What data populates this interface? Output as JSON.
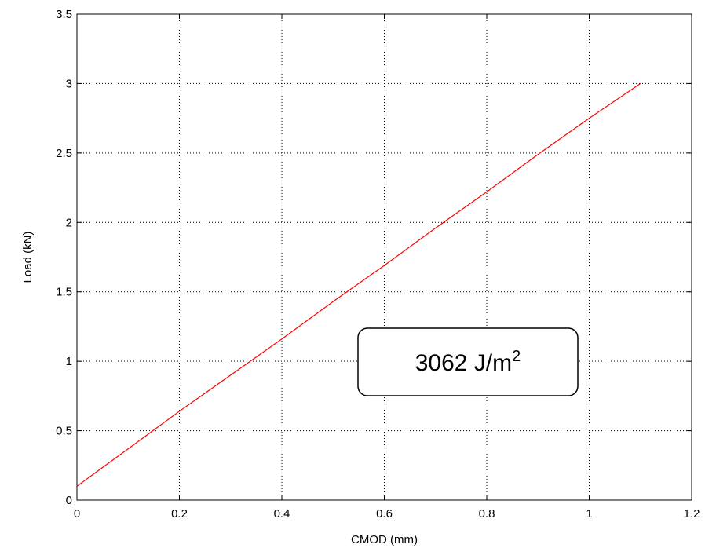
{
  "chart_data": {
    "type": "line",
    "title": "",
    "xlabel": "CMOD (mm)",
    "ylabel": "Load (kN)",
    "xlim": [
      0,
      1.2
    ],
    "ylim": [
      0,
      3.5
    ],
    "xticks": [
      "0",
      "0.2",
      "0.4",
      "0.6",
      "0.8",
      "1",
      "1.2"
    ],
    "yticks": [
      "0",
      "0.5",
      "1",
      "1.5",
      "2",
      "2.5",
      "3",
      "3.5"
    ],
    "grid": true,
    "grid_style": "dotted",
    "legend": "none",
    "series": [
      {
        "color": "#ff0000",
        "x": [
          0,
          0.1,
          0.2,
          0.3,
          0.4,
          0.5,
          0.6,
          0.7,
          0.8,
          0.9,
          1.0,
          1.1
        ],
        "y": [
          0.1,
          0.37,
          0.64,
          0.9,
          1.16,
          1.43,
          1.69,
          1.96,
          2.22,
          2.49,
          2.75,
          3.0
        ]
      }
    ],
    "annotation": {
      "base": "3062 J/m",
      "superscript": "2"
    }
  }
}
